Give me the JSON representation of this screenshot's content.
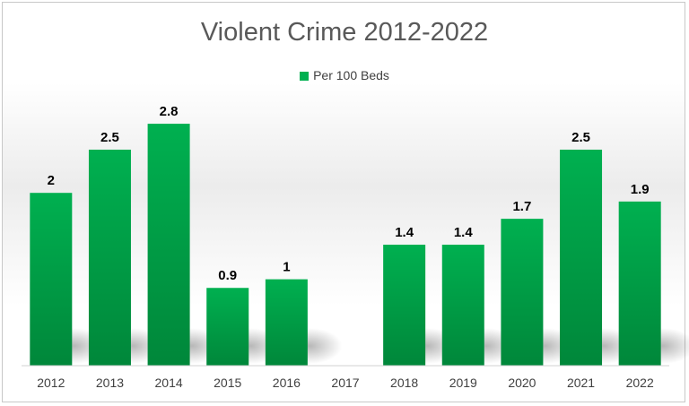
{
  "chart_data": {
    "type": "bar",
    "title": "Violent Crime 2012-2022",
    "categories": [
      "2012",
      "2013",
      "2014",
      "2015",
      "2016",
      "2017",
      "2018",
      "2019",
      "2020",
      "2021",
      "2022"
    ],
    "series": [
      {
        "name": "Per 100 Beds",
        "values": [
          2,
          2.5,
          2.8,
          0.9,
          1,
          null,
          1.4,
          1.4,
          1.7,
          2.5,
          1.9
        ],
        "labels": [
          "2",
          "2.5",
          "2.8",
          "0.9",
          "1",
          "",
          "1.4",
          "1.4",
          "1.7",
          "2.5",
          "1.9"
        ]
      }
    ],
    "legend_position": "top",
    "grid": false,
    "colors": {
      "bar": "#00b050",
      "bar_dark": "#00873a"
    }
  }
}
